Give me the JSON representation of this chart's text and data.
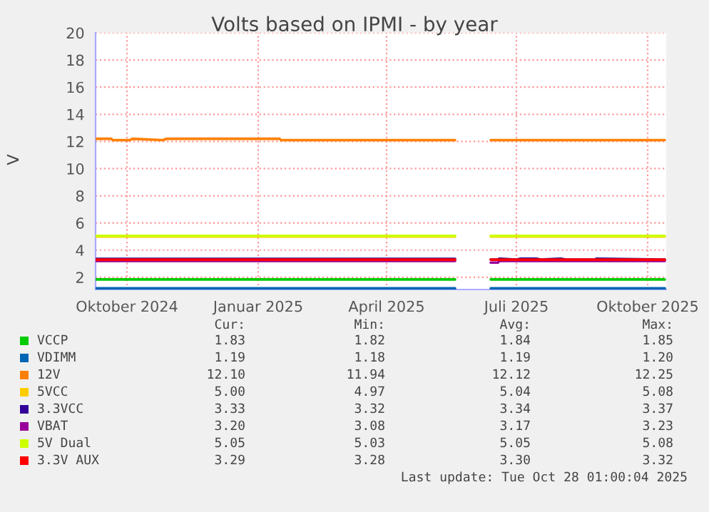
{
  "chart_data": {
    "type": "line",
    "title": "Volts based on IPMI - by year",
    "ylabel": "V",
    "x": [
      "2024-09-09",
      "2024-09-20",
      "2024-09-21",
      "2024-10-03",
      "2024-10-05",
      "2024-10-26",
      "2024-10-29",
      "2024-10-31",
      "2025-01-16",
      "2025-01-17",
      "2025-05-19",
      "2025-05-20",
      "2025-06-13",
      "2025-06-18",
      "2025-06-19",
      "2025-07-01",
      "2025-07-04",
      "2025-07-15",
      "2025-07-18",
      "2025-08-01",
      "2025-08-05",
      "2025-08-25",
      "2025-08-26",
      "2025-10-13"
    ],
    "series": [
      {
        "name": "VCCP",
        "color": "#00cc00",
        "values": [
          1.84,
          1.84,
          1.84,
          1.84,
          1.84,
          1.84,
          1.84,
          1.84,
          1.84,
          1.84,
          1.84,
          null,
          1.84,
          1.84,
          1.84,
          1.84,
          1.84,
          1.84,
          1.84,
          1.84,
          1.84,
          1.84,
          1.84,
          1.84
        ]
      },
      {
        "name": "VDIMM",
        "color": "#0066b3",
        "values": [
          1.19,
          1.19,
          1.19,
          1.19,
          1.19,
          1.19,
          1.19,
          1.19,
          1.19,
          1.19,
          1.19,
          null,
          1.19,
          1.19,
          1.19,
          1.19,
          1.19,
          1.19,
          1.19,
          1.19,
          1.19,
          1.19,
          1.19,
          1.19
        ]
      },
      {
        "name": "12V",
        "color": "#ff8000",
        "values": [
          12.2,
          12.2,
          12.1,
          12.1,
          12.2,
          12.1,
          12.2,
          12.2,
          12.2,
          12.1,
          12.1,
          null,
          12.1,
          12.1,
          12.1,
          12.1,
          12.1,
          12.1,
          12.1,
          12.1,
          12.1,
          12.1,
          12.1,
          12.1
        ]
      },
      {
        "name": "5VCC",
        "color": "#ffcc00",
        "values": [
          5.0,
          5.0,
          5.0,
          5.0,
          5.0,
          5.0,
          5.0,
          5.0,
          5.0,
          5.0,
          5.0,
          null,
          5.0,
          5.0,
          5.0,
          5.0,
          5.0,
          5.0,
          5.0,
          5.0,
          5.0,
          5.0,
          5.0,
          5.0
        ]
      },
      {
        "name": "3.3VCC",
        "color": "#330099",
        "values": [
          3.35,
          3.35,
          3.35,
          3.35,
          3.35,
          3.35,
          3.35,
          3.35,
          3.35,
          3.35,
          3.35,
          null,
          3.3,
          3.3,
          3.37,
          3.3,
          3.37,
          3.37,
          3.3,
          3.37,
          3.3,
          3.3,
          3.37,
          3.3
        ]
      },
      {
        "name": "VBAT",
        "color": "#990099",
        "values": [
          3.2,
          3.2,
          3.2,
          3.2,
          3.2,
          3.2,
          3.2,
          3.2,
          3.2,
          3.2,
          3.2,
          null,
          3.08,
          3.08,
          3.2,
          3.2,
          3.2,
          3.2,
          3.2,
          3.2,
          3.2,
          3.2,
          3.2,
          3.2
        ]
      },
      {
        "name": "5V Dual",
        "color": "#ccff00",
        "values": [
          5.05,
          5.05,
          5.05,
          5.05,
          5.05,
          5.05,
          5.05,
          5.05,
          5.05,
          5.05,
          5.05,
          null,
          5.05,
          5.05,
          5.05,
          5.05,
          5.05,
          5.05,
          5.05,
          5.05,
          5.05,
          5.05,
          5.05,
          5.05
        ]
      },
      {
        "name": "3.3V AUX",
        "color": "#ff0000",
        "values": [
          3.3,
          3.3,
          3.3,
          3.3,
          3.3,
          3.3,
          3.3,
          3.3,
          3.3,
          3.3,
          3.3,
          null,
          3.3,
          3.3,
          3.3,
          3.3,
          3.3,
          3.3,
          3.3,
          3.3,
          3.3,
          3.3,
          3.3,
          3.3
        ]
      }
    ],
    "xlim": [
      "2024-09-09",
      "2025-10-14"
    ],
    "xticks": [
      {
        "value": "2024-10-01",
        "label": "Oktober 2024"
      },
      {
        "value": "2025-01-01",
        "label": "Januar 2025"
      },
      {
        "value": "2025-04-01",
        "label": "April 2025"
      },
      {
        "value": "2025-07-01",
        "label": "Juli 2025"
      },
      {
        "value": "2025-10-01",
        "label": "Oktober 2025"
      }
    ],
    "ylim": [
      1.1,
      20
    ],
    "yticks": [
      2,
      4,
      6,
      8,
      10,
      12,
      14,
      16,
      18,
      20
    ],
    "grid": true,
    "legend": "bottom",
    "line_style": "solid",
    "marker": "none",
    "annotations": [
      "Cur:",
      "Min:",
      "Avg:",
      "Max:",
      "1.83",
      "1.82",
      "1.84",
      "1.85",
      "1.19",
      "1.18",
      "1.19",
      "1.20",
      "12.10",
      "11.94",
      "12.12",
      "12.25",
      "5.00",
      "4.97",
      "5.04",
      "5.08",
      "3.33",
      "3.32",
      "3.34",
      "3.37",
      "3.20",
      "3.08",
      "3.17",
      "3.23",
      "5.05",
      "5.03",
      "5.05",
      "5.08",
      "3.29",
      "3.28",
      "3.30",
      "3.32",
      "Last update: Tue Oct 28 01:00:04 2025"
    ]
  }
}
